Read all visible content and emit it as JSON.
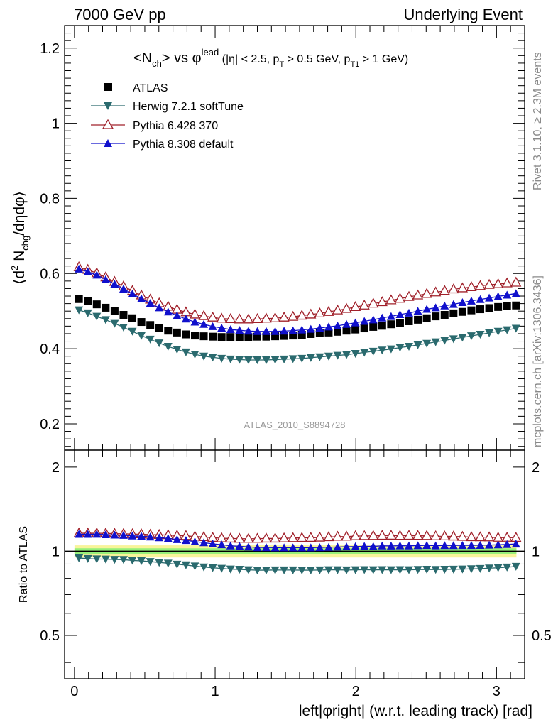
{
  "header": {
    "left": "7000 GeV pp",
    "right": "Underlying Event"
  },
  "side_labels": {
    "rivet": "Rivet 3.1.10, ≥ 2.3M events",
    "mcplots": "mcplots.cern.ch [arXiv:1306.3436]"
  },
  "watermark": "ATLAS_2010_S8894728",
  "chart_data": [
    {
      "type": "scatter",
      "panel": "main",
      "title_parts": {
        "a": "<N",
        "a_sub": "ch",
        "b": "> vs φ",
        "b_sup": "lead",
        "c": " (|η| < 2.5, p",
        "c_sub": "T",
        "d": " > 0.5 GeV, p",
        "d_sub": "T1",
        "e": " > 1 GeV)"
      },
      "ylabel": "⟨d² N_chg/dηdφ⟩",
      "ylabel_parts": {
        "a": "⟨d",
        "a_sup": "2",
        "b": " N",
        "b_sub": "chg",
        "c": "/dηdφ⟩"
      },
      "xlim": [
        -0.07,
        3.2
      ],
      "ylim": [
        0.13,
        1.26
      ],
      "yticks": [
        "0.2",
        "0.4",
        "0.6",
        "0.8",
        "1",
        "1.2"
      ],
      "series": [
        {
          "name": "ATLAS",
          "marker": "square-filled",
          "color": "#000000",
          "x": [
            0.0317,
            0.0951,
            0.1585,
            0.2219,
            0.2853,
            0.3487,
            0.4121,
            0.4755,
            0.5389,
            0.6023,
            0.6657,
            0.7291,
            0.7925,
            0.8559,
            0.9193,
            0.9827,
            1.0461,
            1.1095,
            1.1729,
            1.2363,
            1.2997,
            1.3631,
            1.4265,
            1.4899,
            1.5533,
            1.6167,
            1.6801,
            1.7435,
            1.8069,
            1.8703,
            1.9337,
            1.9971,
            2.0605,
            2.1239,
            2.1873,
            2.2507,
            2.3141,
            2.3775,
            2.4409,
            2.5043,
            2.5677,
            2.6311,
            2.6945,
            2.7579,
            2.8213,
            2.8847,
            2.9481,
            3.0115,
            3.0749,
            3.1383
          ],
          "y": [
            0.532,
            0.526,
            0.518,
            0.509,
            0.5,
            0.49,
            0.481,
            0.471,
            0.463,
            0.455,
            0.448,
            0.443,
            0.438,
            0.435,
            0.433,
            0.432,
            0.431,
            0.431,
            0.431,
            0.431,
            0.432,
            0.432,
            0.433,
            0.434,
            0.435,
            0.437,
            0.439,
            0.441,
            0.443,
            0.445,
            0.448,
            0.451,
            0.454,
            0.458,
            0.461,
            0.465,
            0.469,
            0.473,
            0.477,
            0.481,
            0.486,
            0.49,
            0.494,
            0.498,
            0.502,
            0.505,
            0.508,
            0.511,
            0.513,
            0.515
          ]
        },
        {
          "name": "Herwig 7.2.1 softTune",
          "marker": "triangle-down-filled",
          "color": "#2a6a6e",
          "x": [
            0.0317,
            0.0951,
            0.1585,
            0.2219,
            0.2853,
            0.3487,
            0.4121,
            0.4755,
            0.5389,
            0.6023,
            0.6657,
            0.7291,
            0.7925,
            0.8559,
            0.9193,
            0.9827,
            1.0461,
            1.1095,
            1.1729,
            1.2363,
            1.2997,
            1.3631,
            1.4265,
            1.4899,
            1.5533,
            1.6167,
            1.6801,
            1.7435,
            1.8069,
            1.8703,
            1.9337,
            1.9971,
            2.0605,
            2.1239,
            2.1873,
            2.2507,
            2.3141,
            2.3775,
            2.4409,
            2.5043,
            2.5677,
            2.6311,
            2.6945,
            2.7579,
            2.8213,
            2.8847,
            2.9481,
            3.0115,
            3.0749,
            3.1383
          ],
          "y": [
            0.503,
            0.495,
            0.486,
            0.477,
            0.467,
            0.457,
            0.446,
            0.435,
            0.425,
            0.415,
            0.406,
            0.398,
            0.391,
            0.385,
            0.38,
            0.377,
            0.374,
            0.372,
            0.371,
            0.37,
            0.37,
            0.37,
            0.371,
            0.372,
            0.373,
            0.374,
            0.376,
            0.378,
            0.38,
            0.382,
            0.384,
            0.387,
            0.39,
            0.393,
            0.396,
            0.399,
            0.403,
            0.406,
            0.41,
            0.414,
            0.418,
            0.422,
            0.426,
            0.43,
            0.434,
            0.438,
            0.442,
            0.446,
            0.45,
            0.454
          ]
        },
        {
          "name": "Pythia 6.428 370",
          "marker": "triangle-up-open",
          "color": "#a0202a",
          "x": [
            0.0317,
            0.0951,
            0.1585,
            0.2219,
            0.2853,
            0.3487,
            0.4121,
            0.4755,
            0.5389,
            0.6023,
            0.6657,
            0.7291,
            0.7925,
            0.8559,
            0.9193,
            0.9827,
            1.0461,
            1.1095,
            1.1729,
            1.2363,
            1.2997,
            1.3631,
            1.4265,
            1.4899,
            1.5533,
            1.6167,
            1.6801,
            1.7435,
            1.8069,
            1.8703,
            1.9337,
            1.9971,
            2.0605,
            2.1239,
            2.1873,
            2.2507,
            2.3141,
            2.3775,
            2.4409,
            2.5043,
            2.5677,
            2.6311,
            2.6945,
            2.7579,
            2.8213,
            2.8847,
            2.9481,
            3.0115,
            3.0749,
            3.1383
          ],
          "y": [
            0.617,
            0.61,
            0.601,
            0.59,
            0.578,
            0.566,
            0.554,
            0.542,
            0.531,
            0.521,
            0.512,
            0.504,
            0.497,
            0.491,
            0.487,
            0.483,
            0.48,
            0.479,
            0.478,
            0.478,
            0.479,
            0.48,
            0.481,
            0.483,
            0.485,
            0.488,
            0.491,
            0.494,
            0.498,
            0.502,
            0.506,
            0.511,
            0.515,
            0.52,
            0.524,
            0.529,
            0.533,
            0.538,
            0.542,
            0.546,
            0.55,
            0.554,
            0.558,
            0.561,
            0.564,
            0.567,
            0.57,
            0.572,
            0.574,
            0.576
          ]
        },
        {
          "name": "Pythia 8.308 default",
          "marker": "triangle-up-filled",
          "color": "#1010cc",
          "x": [
            0.0317,
            0.0951,
            0.1585,
            0.2219,
            0.2853,
            0.3487,
            0.4121,
            0.4755,
            0.5389,
            0.6023,
            0.6657,
            0.7291,
            0.7925,
            0.8559,
            0.9193,
            0.9827,
            1.0461,
            1.1095,
            1.1729,
            1.2363,
            1.2997,
            1.3631,
            1.4265,
            1.4899,
            1.5533,
            1.6167,
            1.6801,
            1.7435,
            1.8069,
            1.8703,
            1.9337,
            1.9971,
            2.0605,
            2.1239,
            2.1873,
            2.2507,
            2.3141,
            2.3775,
            2.4409,
            2.5043,
            2.5677,
            2.6311,
            2.6945,
            2.7579,
            2.8213,
            2.8847,
            2.9481,
            3.0115,
            3.0749,
            3.1383
          ],
          "y": [
            0.612,
            0.605,
            0.596,
            0.584,
            0.572,
            0.559,
            0.546,
            0.533,
            0.521,
            0.509,
            0.498,
            0.488,
            0.479,
            0.471,
            0.465,
            0.459,
            0.455,
            0.451,
            0.449,
            0.447,
            0.446,
            0.446,
            0.446,
            0.447,
            0.448,
            0.45,
            0.452,
            0.455,
            0.458,
            0.461,
            0.465,
            0.469,
            0.473,
            0.477,
            0.482,
            0.486,
            0.491,
            0.495,
            0.5,
            0.505,
            0.509,
            0.514,
            0.518,
            0.523,
            0.527,
            0.531,
            0.535,
            0.539,
            0.543,
            0.547
          ]
        }
      ]
    },
    {
      "type": "scatter",
      "panel": "ratio",
      "ylabel": "Ratio to ATLAS",
      "xlabel": "left|φright| (w.r.t. leading track) [rad]",
      "xlim": [
        -0.07,
        3.2
      ],
      "ylim": [
        0.35,
        2.3
      ],
      "xticks": [
        "0",
        "1",
        "2",
        "3"
      ],
      "yticks": [
        "0.5",
        "1",
        "2"
      ],
      "band": {
        "inner_color": "#96f07a",
        "outer_color": "#f8f49a",
        "inner_halfwidth": 0.025,
        "outer_halfwidth": 0.05
      },
      "series": [
        {
          "name": "Herwig 7.2.1 softTune",
          "y": [
            0.946,
            0.941,
            0.938,
            0.937,
            0.934,
            0.933,
            0.927,
            0.924,
            0.918,
            0.912,
            0.906,
            0.898,
            0.893,
            0.885,
            0.878,
            0.873,
            0.868,
            0.863,
            0.861,
            0.858,
            0.856,
            0.856,
            0.857,
            0.857,
            0.857,
            0.856,
            0.856,
            0.857,
            0.858,
            0.858,
            0.857,
            0.858,
            0.859,
            0.858,
            0.859,
            0.858,
            0.859,
            0.858,
            0.86,
            0.861,
            0.86,
            0.861,
            0.862,
            0.863,
            0.865,
            0.867,
            0.87,
            0.873,
            0.877,
            0.882
          ]
        },
        {
          "name": "Pythia 6.428 370",
          "y": [
            1.16,
            1.16,
            1.16,
            1.159,
            1.156,
            1.155,
            1.152,
            1.151,
            1.147,
            1.145,
            1.143,
            1.138,
            1.135,
            1.129,
            1.125,
            1.118,
            1.114,
            1.111,
            1.109,
            1.109,
            1.109,
            1.111,
            1.111,
            1.113,
            1.115,
            1.117,
            1.118,
            1.12,
            1.124,
            1.128,
            1.129,
            1.133,
            1.134,
            1.135,
            1.137,
            1.138,
            1.136,
            1.137,
            1.136,
            1.135,
            1.132,
            1.131,
            1.13,
            1.127,
            1.124,
            1.123,
            1.122,
            1.119,
            1.119,
            1.118
          ]
        },
        {
          "name": "Pythia 8.308 default",
          "y": [
            1.15,
            1.15,
            1.151,
            1.147,
            1.144,
            1.141,
            1.135,
            1.132,
            1.125,
            1.119,
            1.112,
            1.102,
            1.094,
            1.083,
            1.074,
            1.063,
            1.056,
            1.046,
            1.042,
            1.037,
            1.032,
            1.032,
            1.03,
            1.03,
            1.03,
            1.03,
            1.03,
            1.032,
            1.034,
            1.036,
            1.038,
            1.04,
            1.042,
            1.041,
            1.046,
            1.045,
            1.047,
            1.046,
            1.048,
            1.05,
            1.047,
            1.049,
            1.049,
            1.05,
            1.05,
            1.051,
            1.053,
            1.055,
            1.058,
            1.062
          ]
        }
      ]
    }
  ]
}
